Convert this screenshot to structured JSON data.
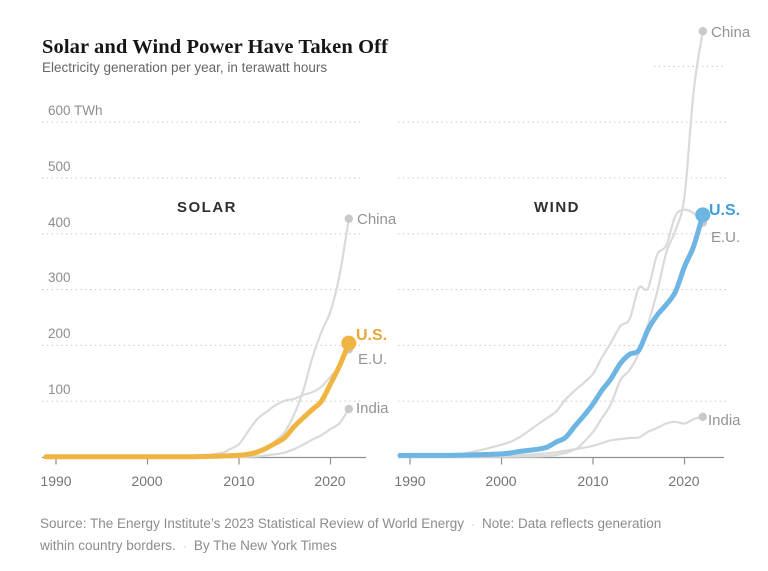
{
  "header": {
    "title": "Solar and Wind Power Have Taken Off",
    "subtitle": "Electricity generation per year, in terawatt hours"
  },
  "y_axis": {
    "ticks": [
      {
        "value": 600,
        "label": "600 TWh"
      },
      {
        "value": 500,
        "label": "500"
      },
      {
        "value": 400,
        "label": "400"
      },
      {
        "value": 300,
        "label": "300"
      },
      {
        "value": 200,
        "label": "200"
      },
      {
        "value": 100,
        "label": "100"
      }
    ]
  },
  "x_axis": {
    "labels": [
      "1990",
      "2000",
      "2010",
      "2020"
    ]
  },
  "colors": {
    "solar_line": "#F0B441",
    "solar_label": "#E8A73B",
    "wind_line": "#6DB5E2",
    "wind_label": "#3E9ED9",
    "muted_line": "#DADADA",
    "muted_dot": "#C9C9C9",
    "gridline": "#CBCBCB",
    "axis": "#8F8F8F",
    "series_label_muted": "#949494"
  },
  "footer": {
    "source": "Source: The Energy Institute’s 2023 Statistical Review of World Energy",
    "note_line1": "Note: Data reflects generation",
    "note_line2": "within country borders.",
    "byline": "By The New York Times",
    "separator": "·"
  },
  "chart_data": [
    {
      "type": "line",
      "panel": "SOLAR",
      "xlabel_ticks": [
        1990,
        2000,
        2010,
        2020
      ],
      "ylim": [
        0,
        600
      ],
      "grid": "dotted-horizontal",
      "series": [
        {
          "name": "china-solar",
          "label": "China",
          "color": "#DADADA",
          "dot_color": "#C9C9C9",
          "highlight": false,
          "points": [
            [
              1990,
              0
            ],
            [
              1995,
              0
            ],
            [
              2000,
              0.1
            ],
            [
              2005,
              0.1
            ],
            [
              2008,
              0.2
            ],
            [
              2010,
              0.7
            ],
            [
              2011,
              2.6
            ],
            [
              2012,
              6
            ],
            [
              2013,
              16
            ],
            [
              2014,
              29
            ],
            [
              2015,
              45
            ],
            [
              2016,
              75
            ],
            [
              2017,
              118
            ],
            [
              2018,
              177
            ],
            [
              2019,
              224
            ],
            [
              2020,
              261
            ],
            [
              2021,
              327
            ],
            [
              2022,
              427
            ]
          ]
        },
        {
          "name": "eu-solar",
          "label": "E.U.",
          "color": "#DADADA",
          "dot_color": "#C9C9C9",
          "highlight": false,
          "points": [
            [
              1990,
              0
            ],
            [
              1995,
              0
            ],
            [
              2000,
              0.1
            ],
            [
              2005,
              1.5
            ],
            [
              2008,
              7
            ],
            [
              2009,
              14
            ],
            [
              2010,
              23
            ],
            [
              2011,
              46
            ],
            [
              2012,
              68
            ],
            [
              2013,
              81
            ],
            [
              2014,
              93
            ],
            [
              2015,
              101
            ],
            [
              2016,
              104
            ],
            [
              2017,
              111
            ],
            [
              2018,
              116
            ],
            [
              2019,
              126
            ],
            [
              2020,
              144
            ],
            [
              2021,
              163
            ],
            [
              2022,
              193
            ]
          ]
        },
        {
          "name": "india-solar",
          "label": "India",
          "color": "#DADADA",
          "dot_color": "#C9C9C9",
          "highlight": false,
          "points": [
            [
              1990,
              0
            ],
            [
              2000,
              0
            ],
            [
              2005,
              0
            ],
            [
              2010,
              0.1
            ],
            [
              2012,
              1
            ],
            [
              2013,
              3
            ],
            [
              2014,
              5
            ],
            [
              2015,
              8
            ],
            [
              2016,
              14
            ],
            [
              2017,
              22
            ],
            [
              2018,
              31
            ],
            [
              2019,
              39
            ],
            [
              2020,
              50
            ],
            [
              2021,
              61
            ],
            [
              2022,
              86
            ]
          ]
        },
        {
          "name": "us-solar",
          "label": "U.S.",
          "color": "#F0B441",
          "label_color": "#E8A73B",
          "dot_color": "#F0B441",
          "highlight": true,
          "points": [
            [
              1990,
              0.4
            ],
            [
              1995,
              0.5
            ],
            [
              2000,
              0.5
            ],
            [
              2005,
              0.6
            ],
            [
              2008,
              1.6
            ],
            [
              2010,
              3
            ],
            [
              2011,
              5
            ],
            [
              2012,
              9
            ],
            [
              2013,
              16
            ],
            [
              2014,
              25
            ],
            [
              2015,
              35
            ],
            [
              2016,
              54
            ],
            [
              2017,
              70
            ],
            [
              2018,
              85
            ],
            [
              2019,
              100
            ],
            [
              2020,
              131
            ],
            [
              2021,
              164
            ],
            [
              2022,
              204
            ]
          ]
        }
      ]
    },
    {
      "type": "line",
      "panel": "WIND",
      "xlabel_ticks": [
        1990,
        2000,
        2010,
        2020
      ],
      "ylim": [
        0,
        600
      ],
      "grid": "dotted-horizontal",
      "partial_gridline_value": 700,
      "series": [
        {
          "name": "china-wind",
          "label": "China",
          "color": "#DADADA",
          "dot_color": "#C9C9C9",
          "highlight": false,
          "points": [
            [
              1990,
              0
            ],
            [
              2000,
              0.6
            ],
            [
              2004,
              1.3
            ],
            [
              2006,
              3.7
            ],
            [
              2008,
              13
            ],
            [
              2009,
              27
            ],
            [
              2010,
              45
            ],
            [
              2011,
              70
            ],
            [
              2012,
              96
            ],
            [
              2013,
              138
            ],
            [
              2014,
              156
            ],
            [
              2015,
              186
            ],
            [
              2016,
              237
            ],
            [
              2017,
              295
            ],
            [
              2018,
              366
            ],
            [
              2019,
              406
            ],
            [
              2020,
              467
            ],
            [
              2021,
              656
            ],
            [
              2022,
              763
            ]
          ]
        },
        {
          "name": "eu-wind",
          "label": "E.U.",
          "color": "#DADADA",
          "dot_color": "#C9C9C9",
          "highlight": false,
          "points": [
            [
              1990,
              0.8
            ],
            [
              1995,
              4
            ],
            [
              2000,
              22
            ],
            [
              2002,
              36
            ],
            [
              2004,
              59
            ],
            [
              2005,
              70
            ],
            [
              2006,
              82
            ],
            [
              2007,
              103
            ],
            [
              2008,
              119
            ],
            [
              2009,
              133
            ],
            [
              2010,
              149
            ],
            [
              2011,
              179
            ],
            [
              2012,
              206
            ],
            [
              2013,
              235
            ],
            [
              2014,
              247
            ],
            [
              2015,
              303
            ],
            [
              2016,
              302
            ],
            [
              2017,
              362
            ],
            [
              2018,
              379
            ],
            [
              2019,
              432
            ],
            [
              2020,
              443
            ],
            [
              2021,
              437
            ],
            [
              2022,
              420
            ]
          ]
        },
        {
          "name": "india-wind",
          "label": "India",
          "color": "#DADADA",
          "dot_color": "#C9C9C9",
          "highlight": false,
          "points": [
            [
              1990,
              0
            ],
            [
              2000,
              1.7
            ],
            [
              2005,
              6.5
            ],
            [
              2008,
              14
            ],
            [
              2010,
              20
            ],
            [
              2012,
              30
            ],
            [
              2014,
              34
            ],
            [
              2015,
              35
            ],
            [
              2016,
              45
            ],
            [
              2017,
              52
            ],
            [
              2018,
              60
            ],
            [
              2019,
              63
            ],
            [
              2020,
              60
            ],
            [
              2021,
              68
            ],
            [
              2022,
              72
            ]
          ]
        },
        {
          "name": "us-wind",
          "label": "U.S.",
          "color": "#6DB5E2",
          "label_color": "#3E9ED9",
          "dot_color": "#6DB5E2",
          "highlight": true,
          "points": [
            [
              1990,
              2.8
            ],
            [
              1995,
              3.2
            ],
            [
              2000,
              5.6
            ],
            [
              2002,
              10
            ],
            [
              2004,
              14
            ],
            [
              2005,
              18
            ],
            [
              2006,
              27
            ],
            [
              2007,
              35
            ],
            [
              2008,
              55
            ],
            [
              2009,
              74
            ],
            [
              2010,
              95
            ],
            [
              2011,
              120
            ],
            [
              2012,
              141
            ],
            [
              2013,
              168
            ],
            [
              2014,
              184
            ],
            [
              2015,
              191
            ],
            [
              2016,
              228
            ],
            [
              2017,
              254
            ],
            [
              2018,
              273
            ],
            [
              2019,
              296
            ],
            [
              2020,
              341
            ],
            [
              2021,
              378
            ],
            [
              2022,
              434
            ]
          ]
        }
      ]
    }
  ]
}
